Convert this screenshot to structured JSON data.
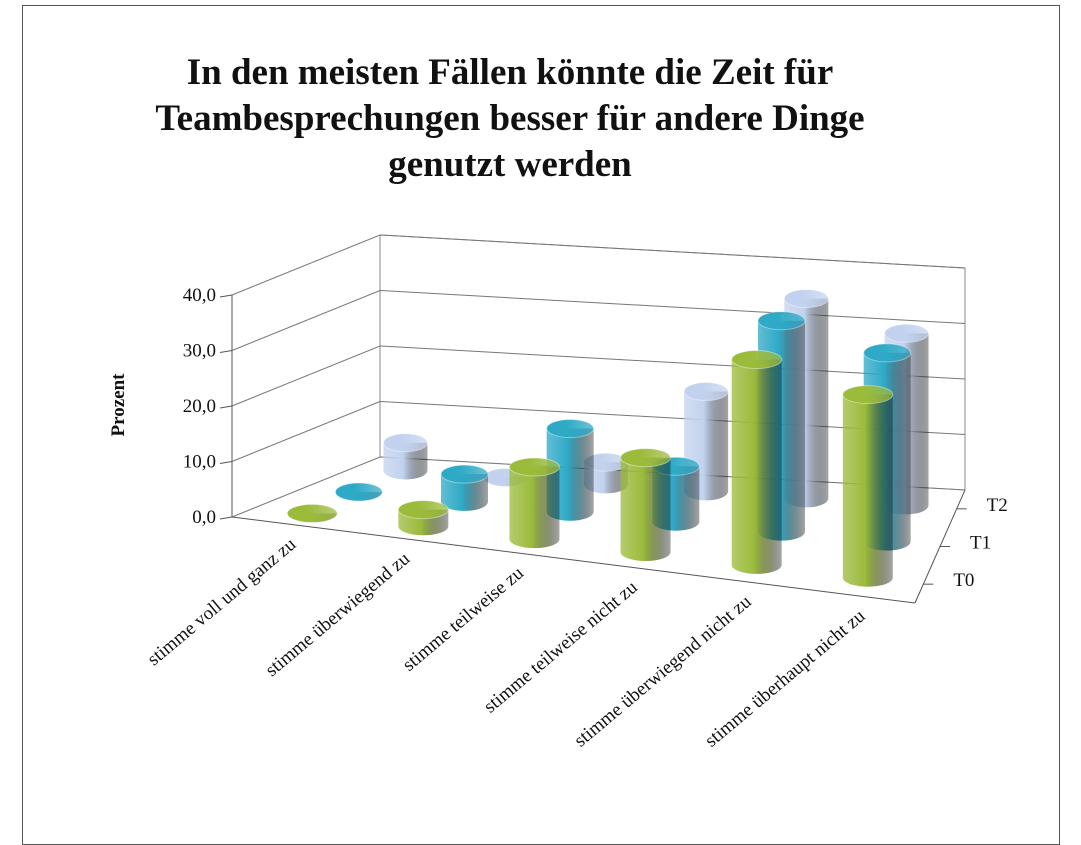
{
  "chart_data": {
    "type": "bar3d",
    "title": "In den meisten Fällen könnte die Zeit für Teambesprechungen besser für andere Dinge genutzt werden",
    "ylabel": "Prozent",
    "categories": [
      "stimme voll und ganz zu",
      "stimme überwiegend zu",
      "stimme teilweise zu",
      "stimme teilweise nicht zu",
      "stimme überwiegend nicht zu",
      "stimme überhaupt nicht zu"
    ],
    "series": [
      {
        "name": "T0",
        "color": "#9bbb3b",
        "values": [
          0,
          3,
          13,
          17,
          37,
          33
        ]
      },
      {
        "name": "T1",
        "color": "#2ea9c6",
        "values": [
          0,
          5,
          15,
          10,
          38,
          34
        ]
      },
      {
        "name": "T2",
        "color": "#c2d2ee",
        "values": [
          5,
          0,
          4,
          18,
          36,
          31
        ]
      }
    ],
    "ylim": [
      0,
      40
    ],
    "yticks": [
      {
        "value": 0,
        "label": "0,0"
      },
      {
        "value": 10,
        "label": "10,0"
      },
      {
        "value": 20,
        "label": "20,0"
      },
      {
        "value": 30,
        "label": "30,0"
      },
      {
        "value": 40,
        "label": "40,0"
      }
    ],
    "grid": true
  }
}
